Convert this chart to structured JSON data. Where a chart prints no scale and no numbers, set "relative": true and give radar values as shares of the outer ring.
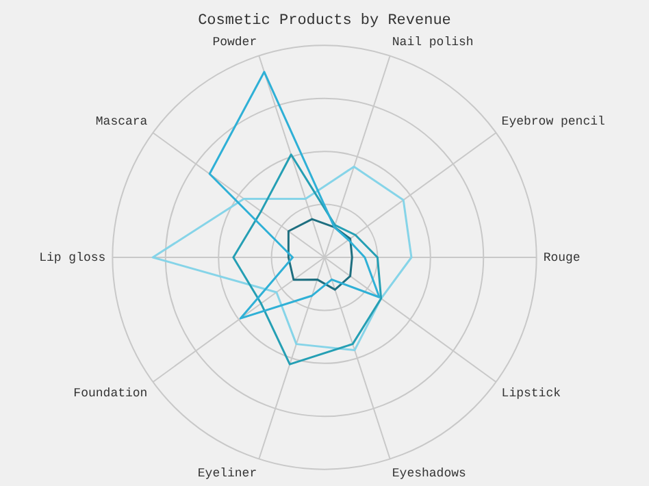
{
  "chart_data": {
    "type": "radar",
    "title": "Cosmetic Products by Revenue",
    "relative": true,
    "grid": true,
    "legend": false,
    "marker": "none",
    "categories": [
      "Nail polish",
      "Eyebrow pencil",
      "Rouge",
      "Lipstick",
      "Eyeshadows",
      "Eyeliner",
      "Foundation",
      "Lip gloss",
      "Mascara",
      "Powder"
    ],
    "series": [
      {
        "color": "#2fb0d6",
        "values": [
          0.15,
          0.14,
          0.19,
          0.32,
          0.11,
          0.19,
          0.49,
          0.15,
          0.67,
          0.92
        ]
      },
      {
        "color": "#259fb4",
        "values": [
          0.16,
          0.18,
          0.25,
          0.33,
          0.43,
          0.53,
          0.37,
          0.43,
          0.37,
          0.51
        ]
      },
      {
        "color": "#86d4e8",
        "values": [
          0.45,
          0.46,
          0.41,
          0.33,
          0.46,
          0.43,
          0.28,
          0.81,
          0.47,
          0.29
        ]
      },
      {
        "color": "#1e6f80",
        "values": [
          0.15,
          0.15,
          0.13,
          0.15,
          0.16,
          0.11,
          0.18,
          0.17,
          0.21,
          0.19
        ]
      }
    ]
  }
}
